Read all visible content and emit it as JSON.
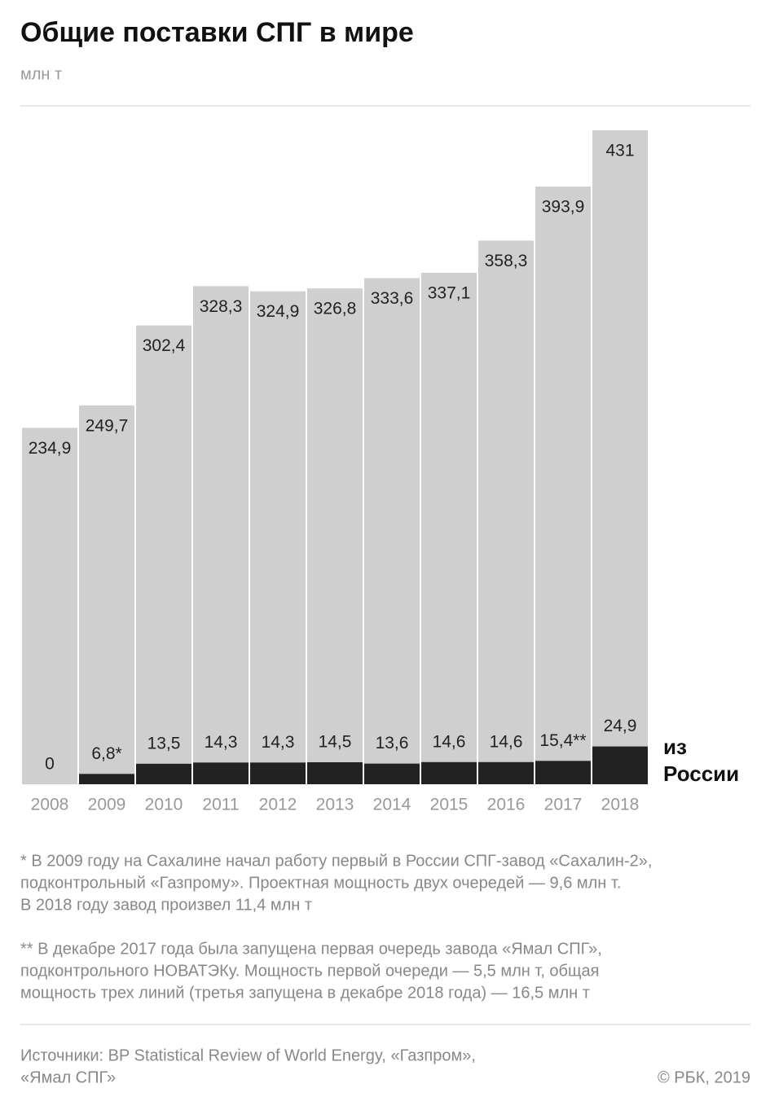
{
  "chart_data": {
    "type": "bar",
    "title": "Общие поставки СПГ в мире",
    "subtitle": "млн т",
    "categories": [
      "2008",
      "2009",
      "2010",
      "2011",
      "2012",
      "2013",
      "2014",
      "2015",
      "2016",
      "2017",
      "2018"
    ],
    "series": [
      {
        "color": "#cfcfcf",
        "values": [
          234.9,
          249.7,
          302.4,
          328.3,
          324.9,
          326.8,
          333.6,
          337.1,
          358.3,
          393.9,
          431
        ],
        "value_labels": [
          "234,9",
          "249,7",
          "302,4",
          "328,3",
          "324,9",
          "326,8",
          "333,6",
          "337,1",
          "358,3",
          "393,9",
          "431"
        ]
      },
      {
        "name": "из России",
        "color": "#222222",
        "values": [
          0,
          6.8,
          13.5,
          14.3,
          14.3,
          14.5,
          13.6,
          14.6,
          14.6,
          15.4,
          24.9
        ],
        "value_labels": [
          "0",
          "6,8*",
          "13,5",
          "14,3",
          "14,3",
          "14,5",
          "13,6",
          "14,6",
          "14,6",
          "15,4**",
          "24,9"
        ]
      }
    ],
    "notes": [
      [
        "* В 2009 году на Сахалине начал работу первый в России СПГ-завод «Сахалин-2»,",
        "подконтрольный «Газпрому». Проектная мощность двух очередей — 9,6 млн т.",
        "В 2018 году завод произвел 11,4 млн т"
      ],
      [
        "** В декабре 2017 года была запущена первая очередь завода «Ямал СПГ»,",
        "подконтрольного НОВАТЭКу. Мощность первой очереди — 5,5 млн т, общая",
        "мощность трех линий (третья запущена в декабре 2018 года) — 16,5 млн т"
      ]
    ],
    "source": [
      "Источники: BP Statistical Review of World Energy, «Газпром»,",
      "«Ямал СПГ»"
    ],
    "copyright": "© РБК, 2019"
  }
}
